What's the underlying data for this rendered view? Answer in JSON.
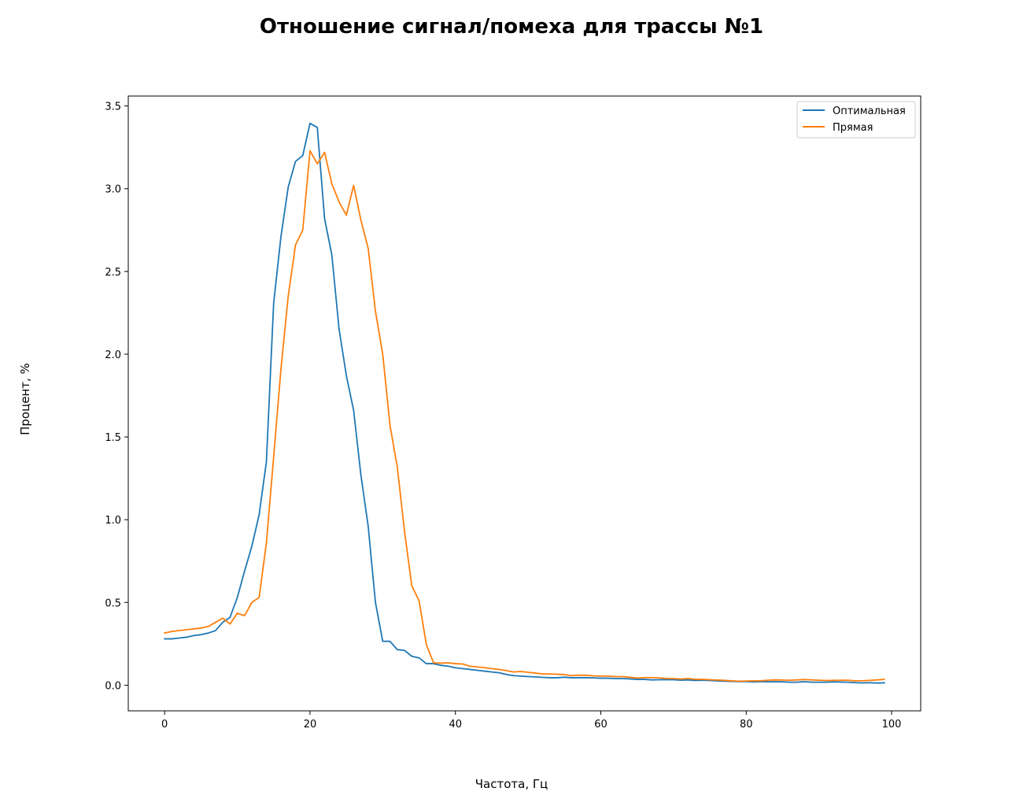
{
  "chart_data": {
    "type": "line",
    "title": "Отношение сигнал/помеха для трассы №1",
    "xlabel": "Частота, Гц",
    "ylabel": "Процент, %",
    "xlim": [
      -5,
      104
    ],
    "ylim": [
      -0.155,
      3.56
    ],
    "x_ticks": [
      0,
      20,
      40,
      60,
      80,
      100
    ],
    "y_ticks": [
      0.0,
      0.5,
      1.0,
      1.5,
      2.0,
      2.5,
      3.0,
      3.5
    ],
    "x_tick_labels": [
      "0",
      "20",
      "40",
      "60",
      "80",
      "100"
    ],
    "y_tick_labels": [
      "0.0",
      "0.5",
      "1.0",
      "1.5",
      "2.0",
      "2.5",
      "3.0",
      "3.5"
    ],
    "grid": false,
    "legend_position": "top-right",
    "x": [
      0,
      1,
      2,
      3,
      4,
      5,
      6,
      7,
      8,
      9,
      10,
      11,
      12,
      13,
      14,
      15,
      16,
      17,
      18,
      19,
      20,
      21,
      22,
      23,
      24,
      25,
      26,
      27,
      28,
      29,
      30,
      31,
      32,
      33,
      34,
      35,
      36,
      37,
      38,
      39,
      40,
      41,
      42,
      43,
      44,
      45,
      46,
      47,
      48,
      49,
      50,
      51,
      52,
      53,
      54,
      55,
      56,
      57,
      58,
      59,
      60,
      61,
      62,
      63,
      64,
      65,
      66,
      67,
      68,
      69,
      70,
      71,
      72,
      73,
      74,
      75,
      76,
      77,
      78,
      79,
      80,
      81,
      82,
      83,
      84,
      85,
      86,
      87,
      88,
      89,
      90,
      91,
      92,
      93,
      94,
      95,
      96,
      97,
      98,
      99
    ],
    "series": [
      {
        "name": "Оптимальная",
        "color": "#1f77b4",
        "values": [
          0.28,
          0.28,
          0.285,
          0.29,
          0.3,
          0.305,
          0.315,
          0.33,
          0.38,
          0.41,
          0.53,
          0.69,
          0.84,
          1.03,
          1.35,
          2.31,
          2.71,
          3.01,
          3.165,
          3.2,
          3.395,
          3.37,
          2.82,
          2.6,
          2.15,
          1.87,
          1.66,
          1.27,
          0.96,
          0.5,
          0.265,
          0.265,
          0.215,
          0.21,
          0.175,
          0.165,
          0.13,
          0.13,
          0.12,
          0.115,
          0.105,
          0.1,
          0.095,
          0.09,
          0.085,
          0.08,
          0.075,
          0.065,
          0.058,
          0.055,
          0.052,
          0.05,
          0.047,
          0.045,
          0.045,
          0.048,
          0.045,
          0.045,
          0.045,
          0.044,
          0.042,
          0.042,
          0.04,
          0.04,
          0.038,
          0.035,
          0.035,
          0.032,
          0.033,
          0.033,
          0.033,
          0.03,
          0.032,
          0.028,
          0.03,
          0.028,
          0.026,
          0.024,
          0.023,
          0.022,
          0.022,
          0.02,
          0.022,
          0.02,
          0.021,
          0.02,
          0.018,
          0.018,
          0.021,
          0.018,
          0.018,
          0.018,
          0.02,
          0.019,
          0.018,
          0.015,
          0.014,
          0.015,
          0.013,
          0.014
        ]
      },
      {
        "name": "Прямая",
        "color": "#ff7f0e",
        "values": [
          0.315,
          0.325,
          0.33,
          0.335,
          0.34,
          0.345,
          0.355,
          0.38,
          0.405,
          0.37,
          0.435,
          0.42,
          0.5,
          0.53,
          0.86,
          1.38,
          1.91,
          2.35,
          2.66,
          2.75,
          3.23,
          3.15,
          3.22,
          3.03,
          2.92,
          2.84,
          3.02,
          2.81,
          2.64,
          2.26,
          2.0,
          1.57,
          1.32,
          0.93,
          0.6,
          0.51,
          0.245,
          0.135,
          0.133,
          0.135,
          0.13,
          0.128,
          0.115,
          0.11,
          0.106,
          0.1,
          0.095,
          0.088,
          0.08,
          0.083,
          0.078,
          0.073,
          0.068,
          0.068,
          0.066,
          0.064,
          0.058,
          0.06,
          0.06,
          0.056,
          0.055,
          0.055,
          0.052,
          0.052,
          0.048,
          0.043,
          0.046,
          0.046,
          0.044,
          0.041,
          0.04,
          0.037,
          0.04,
          0.036,
          0.035,
          0.033,
          0.031,
          0.029,
          0.026,
          0.024,
          0.025,
          0.026,
          0.027,
          0.03,
          0.032,
          0.031,
          0.03,
          0.032,
          0.034,
          0.032,
          0.03,
          0.028,
          0.029,
          0.03,
          0.03,
          0.026,
          0.027,
          0.029,
          0.032,
          0.035
        ]
      }
    ]
  }
}
